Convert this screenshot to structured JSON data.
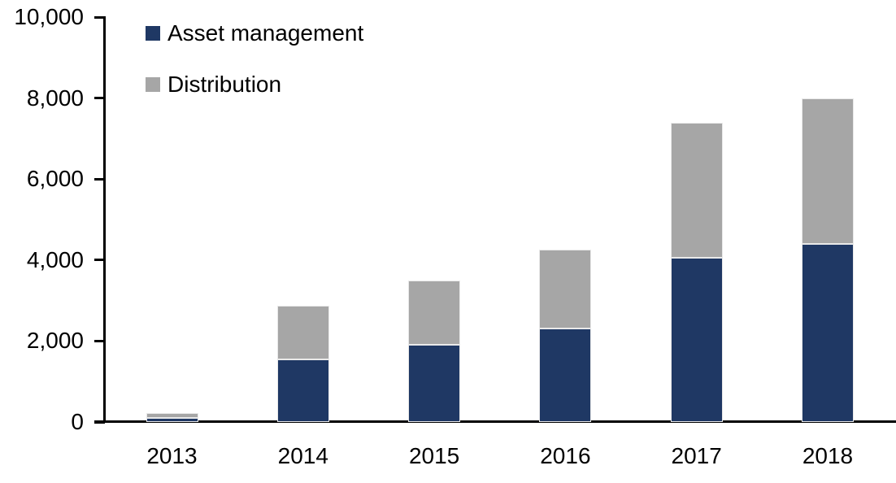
{
  "chart_data": {
    "type": "bar",
    "stacked": true,
    "title": "",
    "categories": [
      "2013",
      "2014",
      "2015",
      "2016",
      "2017",
      "2018"
    ],
    "series": [
      {
        "name": "Asset management",
        "color": "#1F3864",
        "values": [
          110,
          1550,
          1900,
          2300,
          4050,
          4400
        ]
      },
      {
        "name": "Distribution",
        "color": "#A6A6A6",
        "values": [
          110,
          1320,
          1600,
          1950,
          3330,
          3600
        ]
      }
    ],
    "totals": [
      220,
      2870,
      3500,
      4250,
      7380,
      8000
    ],
    "xlabel": "",
    "ylabel": "",
    "ylim": [
      0,
      10000
    ],
    "ytick_interval": 2000,
    "ytick_labels": [
      "0",
      "2,000",
      "4,000",
      "6,000",
      "8,000",
      "10,000"
    ],
    "grid": false,
    "legend_position": "top-left",
    "axis_color": "#000000",
    "background_color": "#FFFFFF"
  }
}
